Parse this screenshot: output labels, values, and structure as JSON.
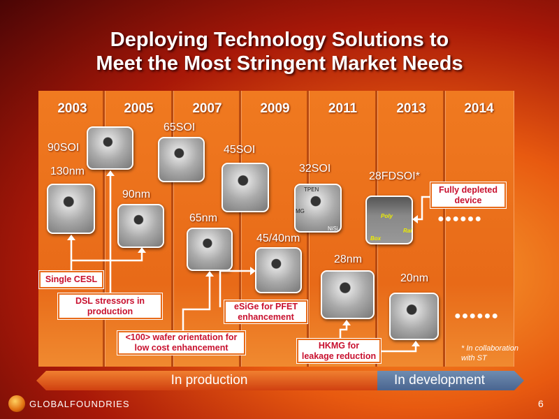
{
  "title_line1": "Deploying Technology Solutions to",
  "title_line2": "Meet the Most Stringent Market Needs",
  "years": [
    "2003",
    "2005",
    "2007",
    "2009",
    "2011",
    "2013",
    "2014"
  ],
  "nodes": {
    "n90soi": "90SOI",
    "n130": "130nm",
    "n65soi": "65SOI",
    "n90": "90nm",
    "n45soi": "45SOI",
    "n65": "65nm",
    "n4540": "45/40nm",
    "n32soi": "32SOI",
    "n28fdsoi": "28FDSOI*",
    "n28": "28nm",
    "n20": "20nm"
  },
  "image_labels": {
    "tpen": "TPEN",
    "mg": "MG",
    "nisi": "NiSi",
    "poly": "Poly",
    "box": "Box",
    "raised": "Rai"
  },
  "callouts": {
    "cesl": "Single CESL",
    "dsl1": "DSL stressors in",
    "dsl2": "production",
    "wafer1": "<100> wafer orientation for",
    "wafer2": "low cost enhancement",
    "esige1": "eSiGe for PFET",
    "esige2": "enhancement",
    "hkmg1": "HKMG for",
    "hkmg2": "leakage reduction",
    "fd1": "Fully depleted",
    "fd2": "device"
  },
  "dots": "●●●●●●",
  "footnote1": "* In collaboration",
  "footnote2": "with ST",
  "phases": {
    "production": "In production",
    "development": "In development"
  },
  "logo": "GLOBALFOUNDRIES",
  "page_number": "6",
  "colors": {
    "panel": "#e86a18",
    "callout_text": "#c8102e",
    "development": "#5a7aa0"
  }
}
